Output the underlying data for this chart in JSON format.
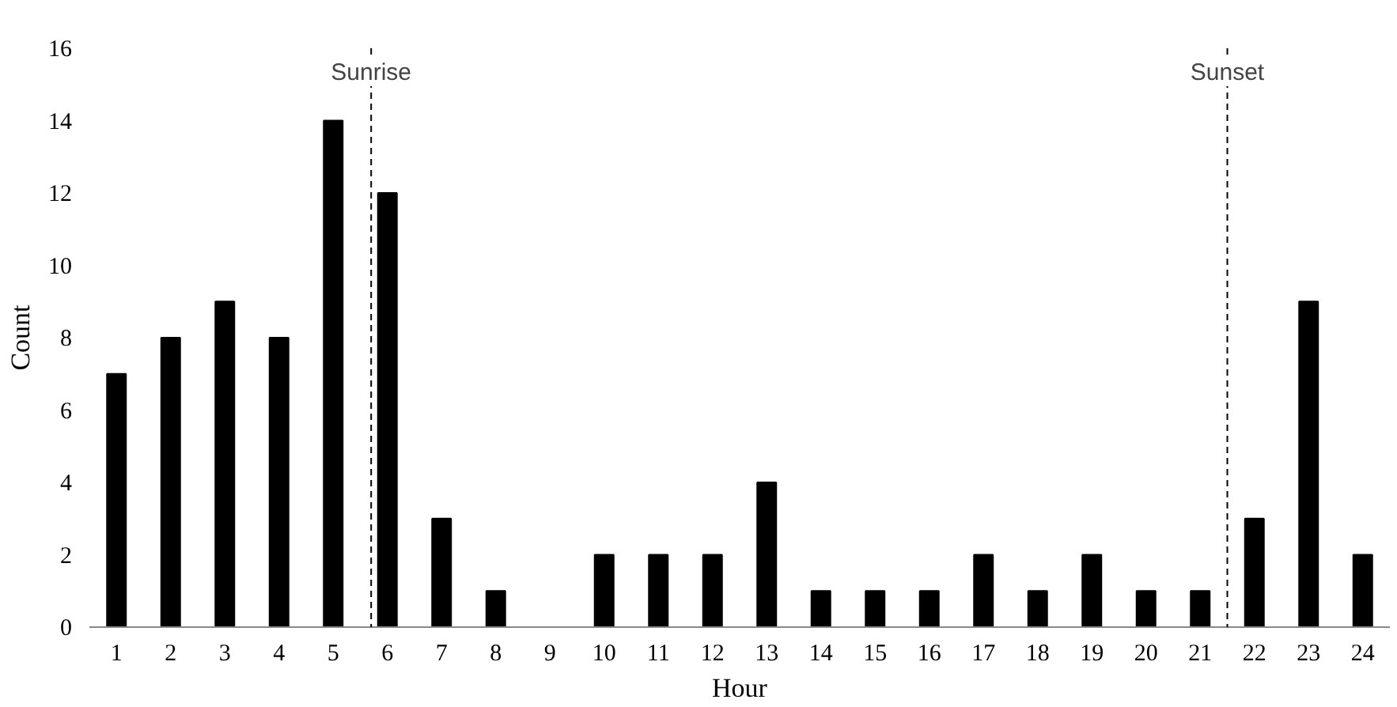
{
  "chart_data": {
    "type": "bar",
    "xlabel": "Hour",
    "ylabel": "Count",
    "x": [
      1,
      2,
      3,
      4,
      5,
      6,
      7,
      8,
      9,
      10,
      11,
      12,
      13,
      14,
      15,
      16,
      17,
      18,
      19,
      20,
      21,
      22,
      23,
      24
    ],
    "values": [
      7,
      8,
      9,
      8,
      14,
      12,
      3,
      1,
      0,
      2,
      2,
      2,
      4,
      1,
      1,
      1,
      2,
      1,
      2,
      1,
      1,
      3,
      9,
      2
    ],
    "color": "#000000",
    "xlim": [
      0.5,
      24.5
    ],
    "xticks": [
      1,
      2,
      3,
      4,
      5,
      6,
      7,
      8,
      9,
      10,
      11,
      12,
      13,
      14,
      15,
      16,
      17,
      18,
      19,
      20,
      21,
      22,
      23,
      24
    ],
    "ylim": [
      0,
      16
    ],
    "yticks": [
      0,
      2,
      4,
      6,
      8,
      10,
      12,
      14,
      16
    ],
    "ref_lines": [
      {
        "axis": "x",
        "value": 5.7,
        "label": "Sunrise",
        "line_style": "dashed",
        "color": "#000000"
      },
      {
        "axis": "x",
        "value": 21.5,
        "label": "Sunset",
        "line_style": "dashed",
        "color": "#000000"
      }
    ],
    "grid": false
  }
}
